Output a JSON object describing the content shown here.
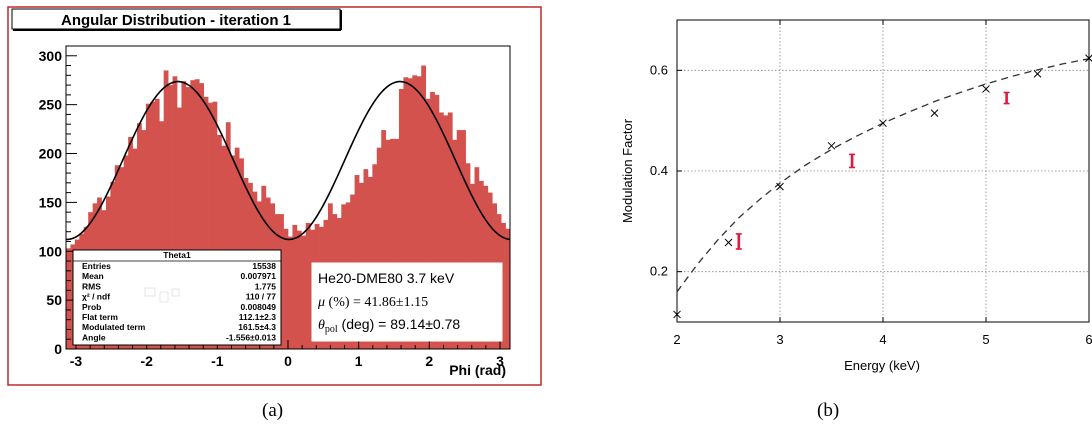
{
  "captions": {
    "a": "(a)",
    "b": "(b)"
  },
  "chart_data": [
    {
      "type": "bar",
      "title": "Angular Distribution - iteration 1",
      "xlabel": "Phi (rad)",
      "ylabel": "",
      "xlim": [
        -3.1416,
        3.1416
      ],
      "ylim": [
        0,
        310
      ],
      "xticks": [
        "-3",
        "-2",
        "-1",
        "0",
        "1",
        "2",
        "3"
      ],
      "yticks": [
        "0",
        "50",
        "100",
        "150",
        "200",
        "250",
        "300"
      ],
      "bar_color": "#d4524d",
      "fit_color": "#000000",
      "bin_count": 100,
      "values": [
        103,
        107,
        112,
        118,
        125,
        140,
        149,
        155,
        142,
        156,
        171,
        188,
        186,
        198,
        217,
        205,
        231,
        224,
        251,
        253,
        256,
        233,
        285,
        270,
        279,
        247,
        274,
        268,
        275,
        276,
        272,
        258,
        252,
        253,
        219,
        208,
        232,
        198,
        206,
        195,
        175,
        170,
        161,
        151,
        167,
        155,
        149,
        138,
        138,
        123,
        115,
        127,
        121,
        116,
        129,
        122,
        128,
        125,
        132,
        149,
        138,
        134,
        148,
        150,
        158,
        178,
        170,
        184,
        176,
        189,
        206,
        224,
        214,
        215,
        215,
        266,
        278,
        277,
        280,
        279,
        290,
        256,
        263,
        260,
        242,
        239,
        242,
        214,
        224,
        224,
        190,
        169,
        186,
        172,
        167,
        160,
        149,
        138,
        129,
        123
      ],
      "fit": {
        "flat_term": 112.1,
        "modulated_term": 161.5,
        "angle": -1.556
      },
      "stats_box": {
        "title": "Theta1",
        "rows": [
          {
            "label": "Entries",
            "value": "15538"
          },
          {
            "label": "Mean",
            "value": "0.007971"
          },
          {
            "label": "RMS",
            "value": "1.775"
          },
          {
            "label": "χ² / ndf",
            "value": "110 / 77"
          },
          {
            "label": "Prob",
            "value": "0.008049"
          },
          {
            "label": "Flat term",
            "value": "112.1±2.3"
          },
          {
            "label": "Modulated term",
            "value": "161.5±4.3"
          },
          {
            "label": "Angle",
            "value": "-1.556±0.013"
          }
        ]
      },
      "annotation": {
        "line1": "He20-DME80 3.7 keV",
        "mu_symbol": "μ",
        "mu_text": " (%) = 41.86±1.15",
        "theta_symbol": "θ",
        "theta_sub": "pol",
        "theta_text": " (deg) = 89.14±0.78"
      }
    },
    {
      "type": "scatter",
      "title": "",
      "xlabel": "Energy (keV)",
      "ylabel": "Modulation Factor",
      "xlim": [
        2,
        6
      ],
      "ylim": [
        0.1,
        0.7
      ],
      "xticks": [
        "2",
        "3",
        "4",
        "5",
        "6"
      ],
      "yticks": [
        "0.2",
        "0.4",
        "0.6"
      ],
      "grid": true,
      "series": [
        {
          "marker": "cross",
          "color": "#000000",
          "x": [
            2.0,
            2.5,
            3.0,
            3.5,
            4.0,
            4.5,
            5.0,
            5.5,
            6.0
          ],
          "y": [
            0.115,
            0.258,
            0.369,
            0.45,
            0.495,
            0.515,
            0.563,
            0.593,
            0.624
          ]
        },
        {
          "marker": "errorbar",
          "color": "#e0193c",
          "x": [
            2.6,
            3.7,
            5.2
          ],
          "y": [
            0.26,
            0.42,
            0.545
          ],
          "err": [
            0.015,
            0.013,
            0.011
          ]
        },
        {
          "marker": "dashed-line",
          "color": "#333333",
          "x": [
            2.0,
            2.2,
            2.4,
            2.6,
            2.8,
            3.0,
            3.25,
            3.5,
            3.75,
            4.0,
            4.25,
            4.5,
            4.75,
            5.0,
            5.25,
            5.5,
            5.75,
            6.0
          ],
          "y": [
            0.16,
            0.215,
            0.264,
            0.307,
            0.343,
            0.376,
            0.412,
            0.443,
            0.47,
            0.495,
            0.517,
            0.538,
            0.556,
            0.573,
            0.588,
            0.601,
            0.613,
            0.623
          ]
        }
      ]
    }
  ]
}
